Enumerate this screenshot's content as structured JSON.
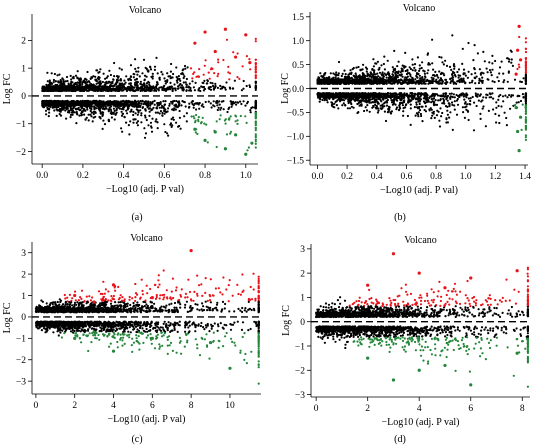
{
  "figure": {
    "panel_labels": [
      "(a)",
      "(b)",
      "(c)",
      "(d)"
    ]
  },
  "colors": {
    "up": "#e8141a",
    "down": "#24863a",
    "not_significant": "#000000",
    "threshold_line": "#000000"
  },
  "chart_data": [
    {
      "type": "scatter",
      "panel": "(a)",
      "title": "Volcano",
      "xlabel": "−Log10 (adj. P val)",
      "ylabel": "Log FC",
      "xlim": [
        -0.05,
        1.06
      ],
      "ylim": [
        -2.45,
        2.95
      ],
      "xticks": [
        0.0,
        0.2,
        0.4,
        0.6,
        0.8,
        1.0
      ],
      "yticks": [
        -2,
        -1,
        0,
        1,
        2
      ],
      "xtick_labels": [
        "0.0",
        "0.2",
        "0.4",
        "0.6",
        "0.8",
        "1.0"
      ],
      "ytick_labels": [
        "−2",
        "−1",
        "0",
        "1",
        "2"
      ],
      "threshold_y": 0,
      "significance_x": 0.72,
      "series": [
        {
          "group": "up",
          "description_points": [
            [
              0.75,
              1.9
            ],
            [
              0.8,
              2.3
            ],
            [
              0.85,
              1.6
            ],
            [
              0.9,
              2.4
            ],
            [
              0.95,
              1.4
            ],
            [
              1.0,
              2.2
            ],
            [
              1.02,
              1.2
            ]
          ]
        },
        {
          "group": "down",
          "description_points": [
            [
              0.75,
              -1.2
            ],
            [
              0.8,
              -1.6
            ],
            [
              0.85,
              -1.3
            ],
            [
              0.9,
              -1.9
            ],
            [
              0.95,
              -1.4
            ],
            [
              1.0,
              -2.1
            ],
            [
              1.03,
              -1.7
            ]
          ]
        }
      ]
    },
    {
      "type": "scatter",
      "panel": "(b)",
      "title": "Volcano",
      "xlabel": "−Log10 (adj. P val)",
      "ylabel": "Log FC",
      "xlim": [
        -0.05,
        1.42
      ],
      "ylim": [
        -1.6,
        1.6
      ],
      "xticks": [
        0.0,
        0.2,
        0.4,
        0.6,
        0.8,
        1.0,
        1.2,
        1.4
      ],
      "yticks": [
        -1.5,
        -1.0,
        -0.5,
        0.0,
        0.5,
        1.0,
        1.5
      ],
      "xtick_labels": [
        "0.0",
        "0.2",
        "0.4",
        "0.6",
        "0.8",
        "1.0",
        "1.2",
        "1.4"
      ],
      "ytick_labels": [
        "−1.5",
        "−1.0",
        "−0.5",
        "0.0",
        "0.5",
        "1.0",
        "1.5"
      ],
      "threshold_y": 0,
      "significance_x": 1.33,
      "series": [
        {
          "group": "up",
          "description_points": [
            [
              1.34,
              0.3
            ],
            [
              1.35,
              0.8
            ],
            [
              1.36,
              1.3
            ],
            [
              1.37,
              0.6
            ]
          ]
        },
        {
          "group": "down",
          "description_points": [
            [
              1.34,
              -0.4
            ],
            [
              1.35,
              -0.9
            ],
            [
              1.36,
              -1.3
            ],
            [
              1.37,
              -0.6
            ]
          ]
        }
      ]
    },
    {
      "type": "scatter",
      "panel": "(c)",
      "title": "Volcano",
      "xlabel": "−Log10 (adj. P val)",
      "ylabel": "Log FC",
      "xlim": [
        -0.2,
        11.6
      ],
      "ylim": [
        -3.6,
        3.5
      ],
      "xticks": [
        0,
        2,
        4,
        6,
        8,
        10
      ],
      "yticks": [
        -3,
        -2,
        -1,
        0,
        1,
        2,
        3
      ],
      "xtick_labels": [
        "0",
        "2",
        "4",
        "6",
        "8",
        "10"
      ],
      "ytick_labels": [
        "−3",
        "−2",
        "−1",
        "0",
        "1",
        "2",
        "3"
      ],
      "threshold_y": 0,
      "significance_x": 1.3,
      "series": [
        {
          "group": "up",
          "description_points": [
            [
              2,
              1.0
            ],
            [
              3,
              0.7
            ],
            [
              4,
              1.5
            ],
            [
              6,
              0.9
            ],
            [
              8,
              3.1
            ],
            [
              11,
              0.8
            ]
          ]
        },
        {
          "group": "down",
          "description_points": [
            [
              2,
              -1.0
            ],
            [
              3,
              -0.7
            ],
            [
              4,
              -1.6
            ],
            [
              6,
              -1.0
            ],
            [
              9,
              -1.2
            ],
            [
              10,
              -2.4
            ]
          ]
        }
      ]
    },
    {
      "type": "scatter",
      "panel": "(d)",
      "title": "Volcano",
      "xlabel": "−Log10 (adj. P val)",
      "ylabel": "Log FC",
      "xlim": [
        -0.2,
        8.3
      ],
      "ylim": [
        -3.1,
        3.2
      ],
      "xticks": [
        0,
        2,
        4,
        6,
        8
      ],
      "yticks": [
        -3,
        -2,
        -1,
        0,
        1,
        2,
        3
      ],
      "xtick_labels": [
        "0",
        "2",
        "4",
        "6",
        "8"
      ],
      "ytick_labels": [
        "−3",
        "−2",
        "−1",
        "0",
        "1",
        "2",
        "3"
      ],
      "threshold_y": 0,
      "significance_x": 1.3,
      "series": [
        {
          "group": "up",
          "description_points": [
            [
              2,
              1.5
            ],
            [
              3,
              2.8
            ],
            [
              4,
              2.0
            ],
            [
              5,
              1.4
            ],
            [
              6,
              1.8
            ],
            [
              7.8,
              2.1
            ]
          ]
        },
        {
          "group": "down",
          "description_points": [
            [
              2,
              -1.5
            ],
            [
              3,
              -2.4
            ],
            [
              4,
              -2.0
            ],
            [
              5,
              -1.8
            ],
            [
              6,
              -2.6
            ],
            [
              7.8,
              -1.3
            ]
          ]
        }
      ]
    }
  ]
}
